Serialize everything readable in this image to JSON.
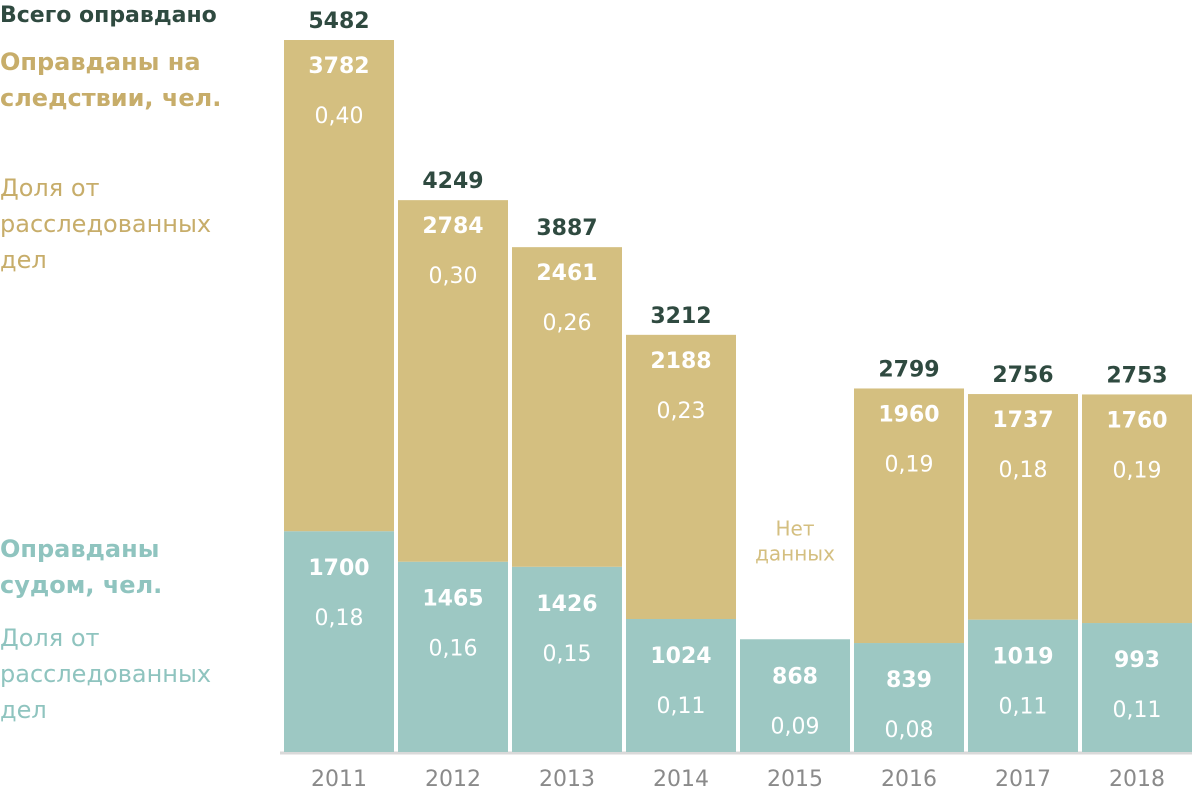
{
  "chart_data": {
    "type": "bar",
    "stacked": true,
    "categories": [
      "2011",
      "2012",
      "2013",
      "2014",
      "2015",
      "2016",
      "2017",
      "2018"
    ],
    "series": [
      {
        "name": "Оправданы судом, чел.",
        "values": [
          1700,
          1465,
          1426,
          1024,
          868,
          839,
          1019,
          993
        ],
        "shares": [
          "0,18",
          "0,16",
          "0,15",
          "0,11",
          "0,09",
          "0,08",
          "0,11",
          "0,11"
        ],
        "color": "#9dc8c3"
      },
      {
        "name": "Оправданы на следствии, чел.",
        "values": [
          3782,
          2784,
          2461,
          2188,
          null,
          1960,
          1737,
          1760
        ],
        "shares": [
          "0,40",
          "0,30",
          "0,26",
          "0,23",
          null,
          "0,19",
          "0,18",
          "0,19"
        ],
        "color": "#d4bf80"
      }
    ],
    "totals": [
      5482,
      4249,
      3887,
      3212,
      null,
      2799,
      2756,
      2753
    ],
    "no_data_label": "Нет данных",
    "ylim": [
      0,
      5482
    ],
    "grid": false
  },
  "legend": {
    "total": "Всего оправдано",
    "gold_title": "Оправданы на следствии, чел.",
    "gold_share": "Доля от расследованных дел",
    "teal_title": "Оправданы судом, чел.",
    "teal_share": "Доля от расследованных дел"
  },
  "colors": {
    "gold": "#d4bf80",
    "teal": "#9dc8c3",
    "dark": "#2f4a40",
    "axis": "#d9d9d9",
    "tick": "#8a8a8a"
  }
}
